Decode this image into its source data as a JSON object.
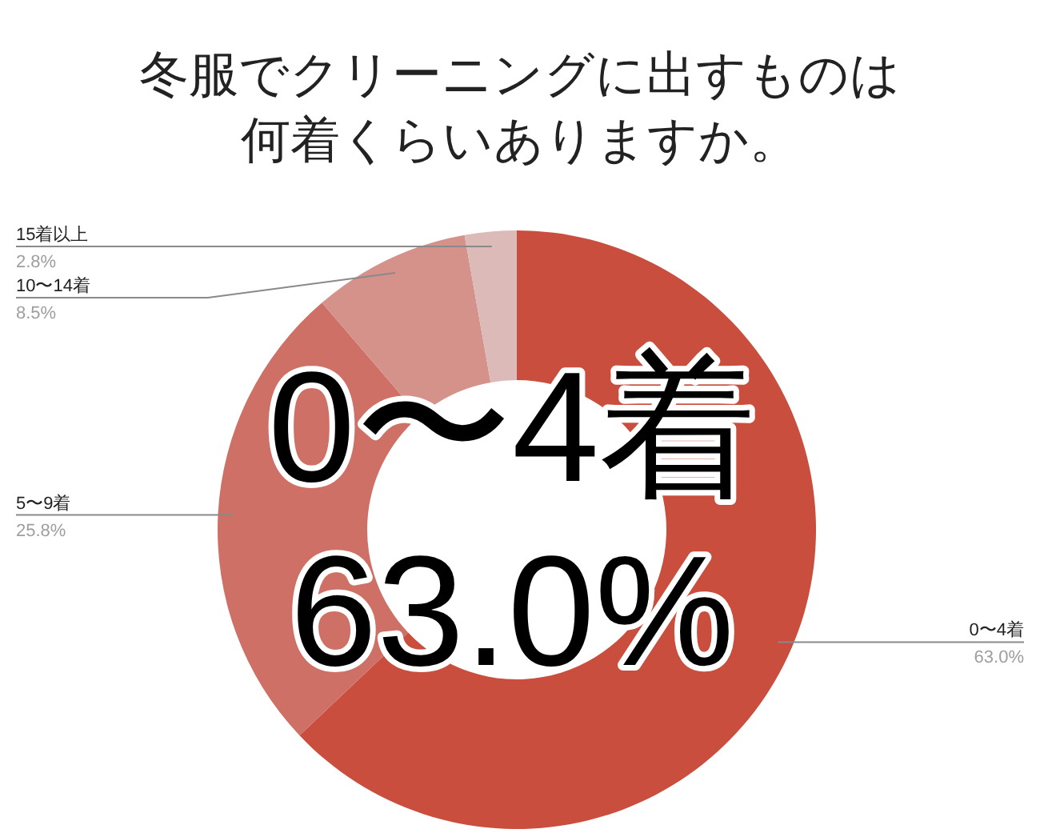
{
  "chart_data": {
    "type": "donut",
    "title": "冬服でクリーニングに出すものは何着くらいありますか。",
    "categories": [
      "0〜4着",
      "5〜9着",
      "10〜14着",
      "15着以上"
    ],
    "values": [
      63.0,
      25.8,
      8.5,
      2.8
    ],
    "colors": [
      "#c94e3e",
      "#cf7066",
      "#d4928b",
      "#dbbab8"
    ],
    "value_labels": [
      "63.0%",
      "25.8%",
      "8.5%",
      "2.8%"
    ],
    "annotations": [
      "0〜4着",
      "63.0%"
    ]
  }
}
